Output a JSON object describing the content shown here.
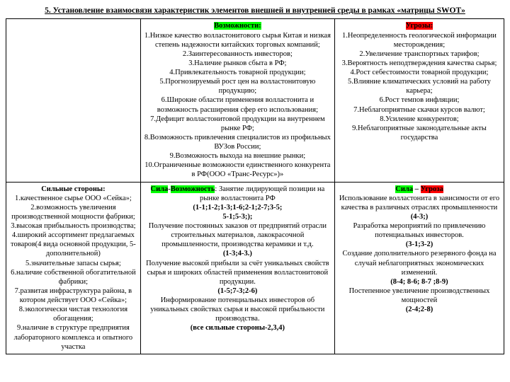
{
  "title": "5. Установление взаимосвязи характеристик элементов внешней и внутренней среды в рамках «матрицы SWOT»",
  "row1": {
    "c1": "",
    "c2_hdr": "Возможности:",
    "c2_body": "1.Низкое качество волластонитового сырья Китая и низкая степень надежности китайских торговых компаний;\n2.Заинтересованность инвесторов;\n3.Наличие рынков сбыта в РФ;\n4.Привлекательность товарной продукции;\n5.Прогнозируемый рост цен на волластонитовую продукцию;\n6.Широкие области применения волластонита и возможность расширения сфер его использования;\n7.Дефицит волластонитовой продукции на внутреннем рынке РФ;\n8.Возможность привлечения специалистов из профильных ВУЗов России;\n9.Возможность выхода на внешние рынки;\n10.Ограниченные возможности единственного конкурента в РФ(ООО «Транс-Ресурс»)»",
    "c3_hdr": "Угрозы:",
    "c3_body": "1.Неопределенность геологической информации месторождения;\n2.Увеличение транспортных тарифов;\n3.Вероятность неподтверждения качества сырья;\n4.Рост себестоимости товарной продукции;\n5.Влияние климатических условий на работу карьера;\n6.Рост темпов инфляции;\n7.Неблагоприятные скачки курсов валют;\n8.Усиление конкурентов;\n9.Неблагоприятные законодательные акты государства"
  },
  "row2": {
    "c1_hdr": "Сильные стороны:",
    "c1_body": "1.качественное сырье ООО «Сейка»;\n2.возможность увеличения производственной мощности фабрики;\n3.высокая прибыльность производства;\n4.широкий ассортимент предлагаемых товаров(4 вида основной продукции, 5-дополнительной)\n5.значительные запасы сырья;\n6.наличие собственной обогатительной фабрики;\n7.развитая инфраструктура района, в котором действует ООО «Сейка»;\n8.экологически чистая технология обогащения;\n9.наличие в структуре предприятия лабораторного комплекса и опытного участка",
    "c2_sila": "Сила",
    "c2_dash": "-",
    "c2_vozm": "Возможность",
    "c2_rest": ": Занятие лидирующей позиции на рынке волластонита РФ",
    "c2_b1": "(1-1;1-2;1-3;1-6;2-1;2-7;3-5;\n5-1;5-3;);",
    "c2_p2": "Получение постоянных заказов от предприятий отрасли строительных материалов, лакокрасочной промышленности, производства керамики и т.д.",
    "c2_b2": "(1-3;4-3.)",
    "c2_p3": "Получение высокой прибыли за счёт уникальных свойств сырья и широких областей применения волластонитовой продукции.",
    "c2_b3": "(1-5;7-3;2-6)",
    "c2_p4": "Информирование потенциальных инвесторов об уникальных свойствах сырья и высокой прибыльности производства.",
    "c2_b4": "(все сильные стороны-2,3,4)",
    "c3_sila": "Сила",
    "c3_dash": " – ",
    "c3_ugr": "Угроза",
    "c3_p1": "Использование волластонита в зависимости от его качества в различных отраслях промышленности",
    "c3_b1": "(4-3;)",
    "c3_p2": "Разработка мероприятий по привлечению потенциальных инвесторов.",
    "c3_b2": "(3-1;3-2)",
    "c3_p3": "Создание дополнительного резервного фонда на случай неблагоприятных экономических изменений.",
    "c3_b3": "(8-4; 8-6; 8-7 ;8-9)",
    "c3_p4": "Постепенное увеличение производственных мощностей",
    "c3_b4": "(2-4;2-8)"
  },
  "colors": {
    "green": "#00ff00",
    "red": "#ff0000"
  }
}
